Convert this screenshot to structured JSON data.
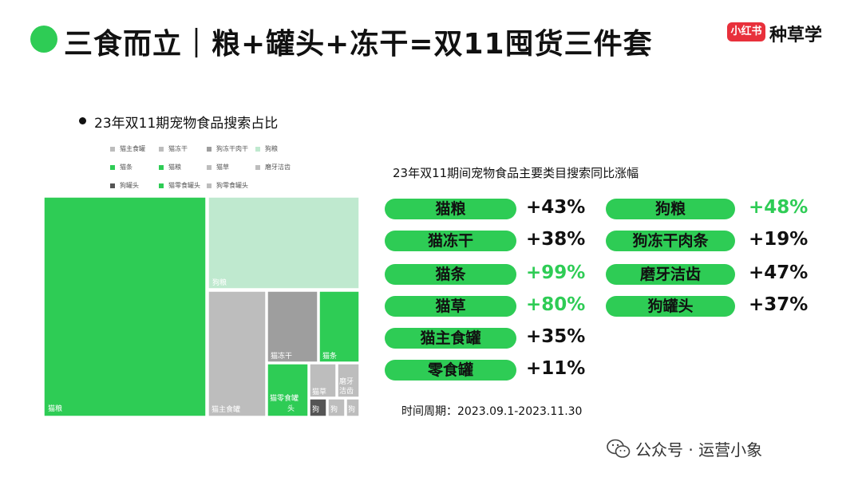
{
  "header": {
    "title": "三食而立｜粮+罐头+冻干=双11囤货三件套",
    "brand_badge": "小红书",
    "brand_text": "种草学"
  },
  "left_chart_title": "23年双11期宠物食品搜索占比",
  "right_chart_title": "23年双11期间宠物食品主要类目搜索同比涨幅",
  "time_period": "时间周期：2023.09.1-2023.11.30",
  "watermark": "公众号 · 运营小象",
  "colors": {
    "green": "#2ecc55",
    "light_green": "#bfe9cf",
    "gray": "#bdbdbd",
    "mid_gray": "#9e9e9e",
    "dark_gray": "#555555",
    "black": "#111111",
    "red_positive": "#2ecc55"
  },
  "chart_data": [
    {
      "type": "treemap",
      "title": "23年双11期宠物食品搜索占比",
      "legend": [
        "猫主食罐",
        "猫冻干",
        "狗冻干肉干",
        "狗粮",
        "猫条",
        "猫粮",
        "猫草",
        "磨牙洁齿",
        "狗罐头",
        "猫零食罐头",
        "狗零食罐头"
      ],
      "labels_shown": [
        "猫粮",
        "狗粮",
        "猫主食罐",
        "猫冻干",
        "猫条",
        "猫零食罐头",
        "猫草",
        "磨牙洁齿",
        "狗",
        "狗",
        "狗"
      ]
    },
    {
      "type": "table",
      "title": "23年双11期间宠物食品主要类目搜索同比涨幅",
      "columns": [
        [
          {
            "name": "猫粮",
            "change": "+43%"
          },
          {
            "name": "猫冻干",
            "change": "+38%"
          },
          {
            "name": "猫条",
            "change": "+99%"
          },
          {
            "name": "猫草",
            "change": "+80%"
          },
          {
            "name": "猫主食罐",
            "change": "+35%"
          },
          {
            "name": "零食罐",
            "change": "+11%"
          }
        ],
        [
          {
            "name": "狗粮",
            "change": "+48%"
          },
          {
            "name": "狗冻干肉条",
            "change": "+19%"
          },
          {
            "name": "磨牙洁齿",
            "change": "+47%"
          },
          {
            "name": "狗罐头",
            "change": "+37%"
          }
        ]
      ],
      "highlighted": [
        "+99%",
        "+80%",
        "+48%"
      ]
    }
  ]
}
